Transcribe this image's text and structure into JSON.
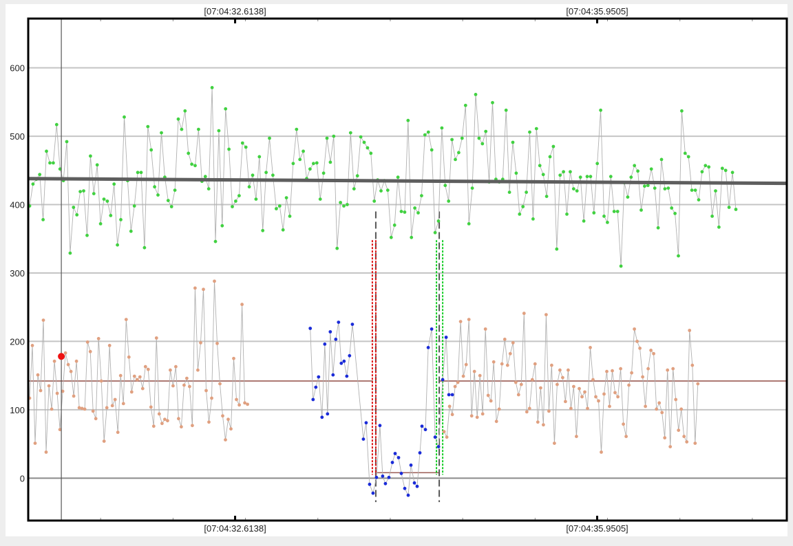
{
  "chart_data": {
    "type": "scatter",
    "x_ticks": [
      {
        "label": "[07:04:32.6138]",
        "x": 30
      },
      {
        "label": "[07:04:35.9505]",
        "x": 82.5
      }
    ],
    "x_range": [
      0,
      110
    ],
    "y_ticks": [
      "0",
      "100",
      "200",
      "300",
      "400",
      "500",
      "600"
    ],
    "ylim": [
      -62,
      672
    ],
    "grid": true,
    "cursor_x": 4.8,
    "cursor_point": {
      "x": 4.8,
      "y": 178
    },
    "green_trend": {
      "start": [
        0,
        438
      ],
      "end": [
        110,
        431
      ]
    },
    "lower_levels": [
      {
        "x_start": 0,
        "x_end": 50,
        "y": 142
      },
      {
        "x_start": 50.6,
        "x_end": 59.6,
        "y": 8
      },
      {
        "x_start": 59.6,
        "x_end": 110,
        "y": 142
      }
    ],
    "segment_bounds": [
      {
        "x": 50.4,
        "y_low": -35,
        "y_high": 390,
        "color": "#555555"
      },
      {
        "x": 59.6,
        "y_low": -35,
        "y_high": 390,
        "color": "#555555"
      }
    ],
    "red_markers": [
      49.9,
      50.4
    ],
    "green_markers": [
      59.2,
      60.1
    ],
    "marker_range": [
      5,
      348
    ],
    "series": [
      {
        "name": "green",
        "color": "#41d141",
        "start_x": 0.2,
        "step": 0.49,
        "values": [
          398,
          430,
          437,
          444,
          378,
          478,
          461,
          461,
          517,
          452,
          435,
          492,
          329,
          396,
          385,
          419,
          420,
          355,
          471,
          416,
          458,
          372,
          408,
          405,
          384,
          430,
          341,
          378,
          528,
          435,
          361,
          398,
          447,
          447,
          337,
          514,
          480,
          426,
          414,
          505,
          440,
          406,
          397,
          421,
          525,
          510,
          537,
          475,
          459,
          457,
          510,
          434,
          441,
          423,
          571,
          346,
          508,
          369,
          540,
          481,
          397,
          405,
          413,
          490,
          484,
          426,
          443,
          408,
          470,
          362,
          447,
          497,
          443,
          394,
          398,
          363,
          410,
          383,
          460,
          510,
          466,
          478,
          438,
          452,
          460,
          461,
          408,
          446,
          497,
          462,
          500,
          336,
          403,
          398,
          400,
          505,
          423,
          442,
          499,
          491,
          483,
          475,
          405,
          436,
          420,
          435,
          421,
          352,
          370,
          440,
          390,
          389,
          523,
          352,
          395,
          388,
          413,
          502,
          506,
          480,
          359,
          376,
          512,
          428,
          405,
          495,
          466,
          476,
          497,
          545,
          372,
          424,
          561,
          497,
          489,
          507,
          433,
          549,
          437,
          433,
          437,
          538,
          418,
          491,
          446,
          386,
          397,
          418,
          506,
          379,
          511,
          457,
          444,
          412,
          470,
          485,
          335,
          443,
          448,
          386,
          448,
          423,
          420,
          440,
          376,
          441,
          441,
          388,
          460,
          538,
          383,
          374,
          441,
          390,
          390,
          310,
          432,
          411,
          440,
          457,
          449,
          392,
          427,
          428,
          452,
          424,
          366,
          466,
          423,
          424,
          395,
          387,
          325,
          537,
          475,
          470,
          421,
          421,
          407,
          448,
          457,
          455,
          383,
          420,
          367,
          453,
          450,
          396,
          447,
          393
        ]
      },
      {
        "name": "orange",
        "color": "#e0a080",
        "start_x": 0.2,
        "step": 0.4,
        "values": [
          117,
          194,
          51,
          151,
          128,
          231,
          38,
          135,
          101,
          171,
          124,
          71,
          127,
          183,
          166,
          156,
          120,
          171,
          103,
          102,
          101,
          199,
          185,
          98,
          87,
          204,
          142,
          54,
          103,
          194,
          106,
          115,
          67,
          150,
          109,
          232,
          177,
          126,
          149,
          144,
          148,
          131,
          163,
          159,
          104,
          76,
          205,
          94,
          80,
          86,
          84,
          158,
          135,
          163,
          87,
          75,
          136,
          146,
          134,
          77,
          278,
          158,
          198,
          276,
          128,
          82,
          117,
          288,
          197,
          138,
          91,
          56,
          86,
          72,
          175,
          115,
          107,
          254,
          110,
          108
        ],
        "offsets": [
          {
            "start_x": 60.3,
            "step": 0.4,
            "values": [
              68,
              60,
              105,
              93,
              134,
              140,
              229,
              149,
              166,
              232,
              91,
              156,
              89,
              150,
              94,
              218,
              121,
              113,
              170,
              83,
              101,
              167,
              203,
              165,
              182,
              198,
              140,
              122,
              137,
              241,
              97,
              102,
              144,
              167,
              82,
              132,
              78,
              239,
              98,
              165,
              51,
              137,
              158,
              147,
              112,
              158,
              102,
              134,
              61,
              131,
              119,
              126,
              102,
              191,
              144,
              119,
              113,
              38,
              123,
              156,
              105,
              157,
              125,
              119,
              160,
              79,
              61,
              136,
              154,
              218,
              200,
              190,
              148,
              105,
              160,
              187,
              182,
              101,
              110,
              96,
              59,
              158,
              46,
              160,
              115,
              70,
              101,
              61,
              53,
              216,
              165,
              51,
              138
            ]
          }
        ]
      },
      {
        "name": "blue",
        "color": "#1a2bd8",
        "points": [
          [
            40.9,
            219
          ],
          [
            41.3,
            115
          ],
          [
            41.7,
            133
          ],
          [
            42.1,
            148
          ],
          [
            42.6,
            89
          ],
          [
            43.0,
            196
          ],
          [
            43.4,
            94
          ],
          [
            43.8,
            214
          ],
          [
            44.2,
            151
          ],
          [
            44.6,
            203
          ],
          [
            45.0,
            228
          ],
          [
            45.4,
            168
          ],
          [
            45.8,
            171
          ],
          [
            46.2,
            149
          ],
          [
            46.6,
            179
          ],
          [
            47.0,
            225
          ],
          [
            48.6,
            57
          ],
          [
            49.0,
            81
          ],
          [
            49.5,
            -9
          ],
          [
            50.0,
            -22
          ],
          [
            50.5,
            1
          ],
          [
            51.0,
            77
          ],
          [
            51.4,
            3
          ],
          [
            51.8,
            -8
          ],
          [
            52.3,
            1
          ],
          [
            52.8,
            23
          ],
          [
            53.2,
            36
          ],
          [
            53.7,
            30
          ],
          [
            54.1,
            7
          ],
          [
            54.6,
            -15
          ],
          [
            55.1,
            -25
          ],
          [
            55.5,
            19
          ],
          [
            56.0,
            -7
          ],
          [
            56.4,
            -12
          ],
          [
            56.8,
            37
          ],
          [
            57.1,
            76
          ],
          [
            57.6,
            71
          ],
          [
            58.0,
            191
          ],
          [
            58.5,
            218
          ],
          [
            59.0,
            60
          ],
          [
            59.5,
            46
          ],
          [
            60.1,
            144
          ],
          [
            60.6,
            206
          ],
          [
            61.0,
            122
          ],
          [
            61.5,
            122
          ]
        ]
      }
    ]
  }
}
